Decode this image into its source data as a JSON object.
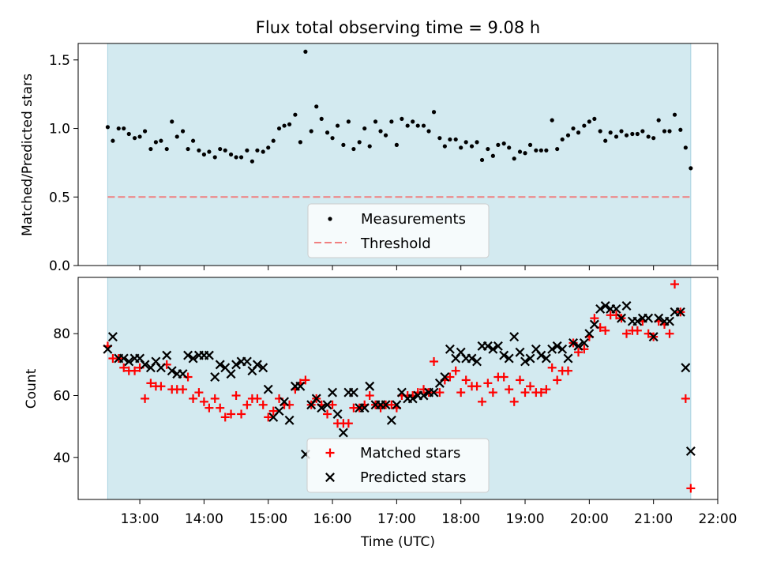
{
  "title": "Flux total observing time = 9.08 h",
  "colors": {
    "band": "#d3eaf0",
    "band_edge": "#a8d3e0",
    "threshold": "#f08080",
    "matched": "#ff0000",
    "predicted": "#000000",
    "measurement": "#000000"
  },
  "chart_data": [
    {
      "type": "scatter",
      "ylabel": "Matched/Predicted stars",
      "ylim": [
        0,
        1.62
      ],
      "yticks": [
        "0.0",
        "0.5",
        "1.0",
        "1.5"
      ],
      "shaded_span_hours": [
        12.5,
        21.58
      ],
      "threshold": 0.5,
      "legend": {
        "position": "lower-center",
        "entries": [
          "Measurements",
          "Threshold"
        ]
      },
      "series": [
        {
          "name": "Measurements",
          "x": [
            12.5,
            12.58,
            12.67,
            12.75,
            12.83,
            12.92,
            13.0,
            13.08,
            13.17,
            13.25,
            13.33,
            13.42,
            13.5,
            13.58,
            13.67,
            13.75,
            13.83,
            13.92,
            14.0,
            14.08,
            14.17,
            14.25,
            14.33,
            14.42,
            14.5,
            14.58,
            14.67,
            14.75,
            14.83,
            14.92,
            15.0,
            15.08,
            15.17,
            15.25,
            15.33,
            15.42,
            15.5,
            15.58,
            15.67,
            15.75,
            15.83,
            15.92,
            16.0,
            16.08,
            16.17,
            16.25,
            16.33,
            16.42,
            16.5,
            16.58,
            16.67,
            16.75,
            16.83,
            16.92,
            17.0,
            17.08,
            17.17,
            17.25,
            17.33,
            17.42,
            17.5,
            17.58,
            17.67,
            17.75,
            17.83,
            17.92,
            18.0,
            18.08,
            18.17,
            18.25,
            18.33,
            18.42,
            18.5,
            18.58,
            18.67,
            18.75,
            18.83,
            18.92,
            19.0,
            19.08,
            19.17,
            19.25,
            19.33,
            19.42,
            19.5,
            19.58,
            19.67,
            19.75,
            19.83,
            19.92,
            20.0,
            20.08,
            20.17,
            20.25,
            20.33,
            20.42,
            20.5,
            20.58,
            20.67,
            20.75,
            20.83,
            20.92,
            21.0,
            21.08,
            21.17,
            21.25,
            21.33,
            21.42,
            21.5,
            21.58
          ],
          "y": [
            1.01,
            0.91,
            1.0,
            1.0,
            0.96,
            0.93,
            0.94,
            0.98,
            0.85,
            0.9,
            0.91,
            0.85,
            1.05,
            0.94,
            0.98,
            0.85,
            0.91,
            0.84,
            0.81,
            0.83,
            0.79,
            0.85,
            0.84,
            0.81,
            0.79,
            0.79,
            0.84,
            0.76,
            0.84,
            0.83,
            0.86,
            0.91,
            1.0,
            1.02,
            1.03,
            1.1,
            0.9,
            1.56,
            0.98,
            1.16,
            1.07,
            0.97,
            0.93,
            1.02,
            0.88,
            1.05,
            0.85,
            0.9,
            1.0,
            0.87,
            1.05,
            0.98,
            0.95,
            1.05,
            0.88,
            1.07,
            1.02,
            1.05,
            1.02,
            1.02,
            0.98,
            1.12,
            0.93,
            0.87,
            0.92,
            0.92,
            0.86,
            0.9,
            0.87,
            0.9,
            0.77,
            0.85,
            0.8,
            0.88,
            0.89,
            0.86,
            0.78,
            0.83,
            0.82,
            0.88,
            0.84,
            0.84,
            0.84,
            1.06,
            0.85,
            0.92,
            0.95,
            1.0,
            0.97,
            1.02,
            1.05,
            1.07,
            0.98,
            0.91,
            0.97,
            0.94,
            0.98,
            0.95,
            0.96,
            0.96,
            0.98,
            0.94,
            0.93,
            1.06,
            0.98,
            0.98,
            1.1,
            0.99,
            0.86,
            0.71
          ]
        },
        {
          "name": "Threshold",
          "x": [
            12.5,
            21.58
          ],
          "y": [
            0.5,
            0.5
          ]
        }
      ]
    },
    {
      "type": "scatter",
      "xlabel": "Time (UTC)",
      "ylabel": "Count",
      "xlim": [
        12.04,
        22.0
      ],
      "ylim": [
        26.4,
        98.2
      ],
      "xticks": [
        "13:00",
        "14:00",
        "15:00",
        "16:00",
        "17:00",
        "18:00",
        "19:00",
        "20:00",
        "21:00",
        "22:00"
      ],
      "yticks": [
        "40",
        "60",
        "80"
      ],
      "shaded_span_hours": [
        12.5,
        21.58
      ],
      "legend": {
        "position": "lower-center",
        "entries": [
          "Matched stars",
          "Predicted stars"
        ]
      },
      "series": [
        {
          "name": "Matched stars",
          "marker": "+",
          "x": [
            12.5,
            12.58,
            12.67,
            12.75,
            12.83,
            12.92,
            13.0,
            13.08,
            13.17,
            13.25,
            13.33,
            13.42,
            13.5,
            13.58,
            13.67,
            13.75,
            13.83,
            13.92,
            14.0,
            14.08,
            14.17,
            14.25,
            14.33,
            14.42,
            14.5,
            14.58,
            14.67,
            14.75,
            14.83,
            14.92,
            15.0,
            15.08,
            15.17,
            15.25,
            15.33,
            15.42,
            15.5,
            15.58,
            15.67,
            15.75,
            15.83,
            15.92,
            16.0,
            16.08,
            16.17,
            16.25,
            16.33,
            16.42,
            16.5,
            16.58,
            16.67,
            16.75,
            16.83,
            16.92,
            17.0,
            17.08,
            17.17,
            17.25,
            17.33,
            17.42,
            17.5,
            17.58,
            17.67,
            17.75,
            17.83,
            17.92,
            18.0,
            18.08,
            18.17,
            18.25,
            18.33,
            18.42,
            18.5,
            18.58,
            18.67,
            18.75,
            18.83,
            18.92,
            19.0,
            19.08,
            19.17,
            19.25,
            19.33,
            19.42,
            19.5,
            19.58,
            19.67,
            19.75,
            19.83,
            19.92,
            20.0,
            20.08,
            20.17,
            20.25,
            20.33,
            20.42,
            20.5,
            20.58,
            20.67,
            20.75,
            20.83,
            20.92,
            21.0,
            21.08,
            21.17,
            21.25,
            21.33,
            21.42,
            21.5,
            21.58
          ],
          "y": [
            76,
            72,
            72,
            69,
            68,
            68,
            69,
            59,
            64,
            63,
            63,
            70,
            62,
            62,
            62,
            66,
            59,
            61,
            58,
            56,
            59,
            56,
            53,
            54,
            60,
            54,
            57,
            59,
            59,
            57,
            53,
            55,
            59,
            57,
            57,
            62,
            64,
            65,
            57,
            59,
            57,
            54,
            57,
            51,
            51,
            51,
            56,
            56,
            57,
            60,
            57,
            56,
            57,
            57,
            56,
            60,
            60,
            60,
            61,
            62,
            61,
            71,
            61,
            65,
            66,
            68,
            61,
            65,
            63,
            63,
            58,
            64,
            61,
            66,
            66,
            62,
            58,
            65,
            61,
            63,
            61,
            61,
            62,
            69,
            65,
            68,
            68,
            77,
            74,
            75,
            79,
            85,
            82,
            81,
            86,
            86,
            85,
            80,
            81,
            81,
            84,
            80,
            79,
            84,
            83,
            80,
            96,
            87,
            59,
            30
          ]
        },
        {
          "name": "Predicted stars",
          "marker": "x",
          "x": [
            12.5,
            12.58,
            12.67,
            12.75,
            12.83,
            12.92,
            13.0,
            13.08,
            13.17,
            13.25,
            13.33,
            13.42,
            13.5,
            13.58,
            13.67,
            13.75,
            13.83,
            13.92,
            14.0,
            14.08,
            14.17,
            14.25,
            14.33,
            14.42,
            14.5,
            14.58,
            14.67,
            14.75,
            14.83,
            14.92,
            15.0,
            15.08,
            15.17,
            15.25,
            15.33,
            15.42,
            15.5,
            15.58,
            15.67,
            15.75,
            15.83,
            15.92,
            16.0,
            16.08,
            16.17,
            16.25,
            16.33,
            16.42,
            16.5,
            16.58,
            16.67,
            16.75,
            16.83,
            16.92,
            17.0,
            17.08,
            17.17,
            17.25,
            17.33,
            17.42,
            17.5,
            17.58,
            17.67,
            17.75,
            17.83,
            17.92,
            18.0,
            18.08,
            18.17,
            18.25,
            18.33,
            18.42,
            18.5,
            18.58,
            18.67,
            18.75,
            18.83,
            18.92,
            19.0,
            19.08,
            19.17,
            19.25,
            19.33,
            19.42,
            19.5,
            19.58,
            19.67,
            19.75,
            19.83,
            19.92,
            20.0,
            20.08,
            20.17,
            20.25,
            20.33,
            20.42,
            20.5,
            20.58,
            20.67,
            20.75,
            20.83,
            20.92,
            21.0,
            21.08,
            21.17,
            21.25,
            21.33,
            21.42,
            21.5,
            21.58
          ],
          "y": [
            75,
            79,
            72,
            72,
            71,
            72,
            72,
            70,
            69,
            71,
            69,
            73,
            68,
            67,
            67,
            73,
            72,
            73,
            73,
            73,
            66,
            70,
            69,
            67,
            70,
            71,
            71,
            68,
            70,
            69,
            62,
            53,
            55,
            58,
            52,
            63,
            63,
            41,
            57,
            59,
            56,
            57,
            61,
            54,
            48,
            61,
            61,
            56,
            56,
            63,
            57,
            57,
            57,
            52,
            57,
            61,
            59,
            59,
            60,
            60,
            61,
            61,
            64,
            66,
            75,
            72,
            74,
            72,
            72,
            71,
            76,
            76,
            75,
            76,
            73,
            72,
            79,
            74,
            71,
            72,
            75,
            73,
            72,
            75,
            76,
            75,
            72,
            77,
            76,
            77,
            80,
            83,
            88,
            89,
            88,
            88,
            85,
            89,
            84,
            84,
            85,
            85,
            79,
            85,
            84,
            84,
            87,
            87,
            69,
            42
          ]
        }
      ]
    }
  ]
}
